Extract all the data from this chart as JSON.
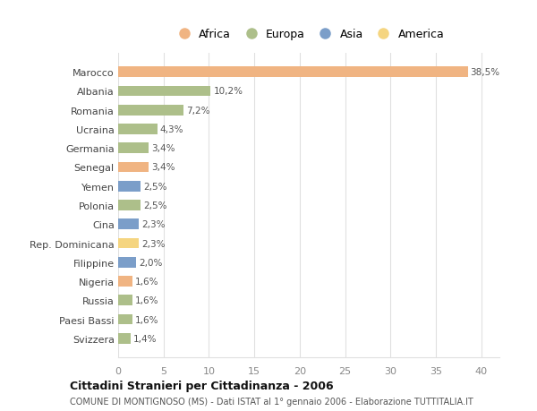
{
  "countries": [
    "Marocco",
    "Albania",
    "Romania",
    "Ucraina",
    "Germania",
    "Senegal",
    "Yemen",
    "Polonia",
    "Cina",
    "Rep. Dominicana",
    "Filippine",
    "Nigeria",
    "Russia",
    "Paesi Bassi",
    "Svizzera"
  ],
  "values": [
    38.5,
    10.2,
    7.2,
    4.3,
    3.4,
    3.4,
    2.5,
    2.5,
    2.3,
    2.3,
    2.0,
    1.6,
    1.6,
    1.6,
    1.4
  ],
  "labels": [
    "38,5%",
    "10,2%",
    "7,2%",
    "4,3%",
    "3,4%",
    "3,4%",
    "2,5%",
    "2,5%",
    "2,3%",
    "2,3%",
    "2,0%",
    "1,6%",
    "1,6%",
    "1,6%",
    "1,4%"
  ],
  "colors": [
    "#f0b482",
    "#adbf8a",
    "#adbf8a",
    "#adbf8a",
    "#adbf8a",
    "#f0b482",
    "#7b9ec9",
    "#adbf8a",
    "#7b9ec9",
    "#f5d580",
    "#7b9ec9",
    "#f0b482",
    "#adbf8a",
    "#adbf8a",
    "#adbf8a"
  ],
  "legend_labels": [
    "Africa",
    "Europa",
    "Asia",
    "America"
  ],
  "legend_colors": [
    "#f0b482",
    "#adbf8a",
    "#7b9ec9",
    "#f5d580"
  ],
  "title": "Cittadini Stranieri per Cittadinanza - 2006",
  "subtitle": "COMUNE DI MONTIGNOSO (MS) - Dati ISTAT al 1° gennaio 2006 - Elaborazione TUTTITALIA.IT",
  "xlim": [
    0,
    42
  ],
  "xticks": [
    0,
    5,
    10,
    15,
    20,
    25,
    30,
    35,
    40
  ],
  "bg_color": "#ffffff",
  "grid_color": "#e0e0e0",
  "bar_height": 0.55
}
